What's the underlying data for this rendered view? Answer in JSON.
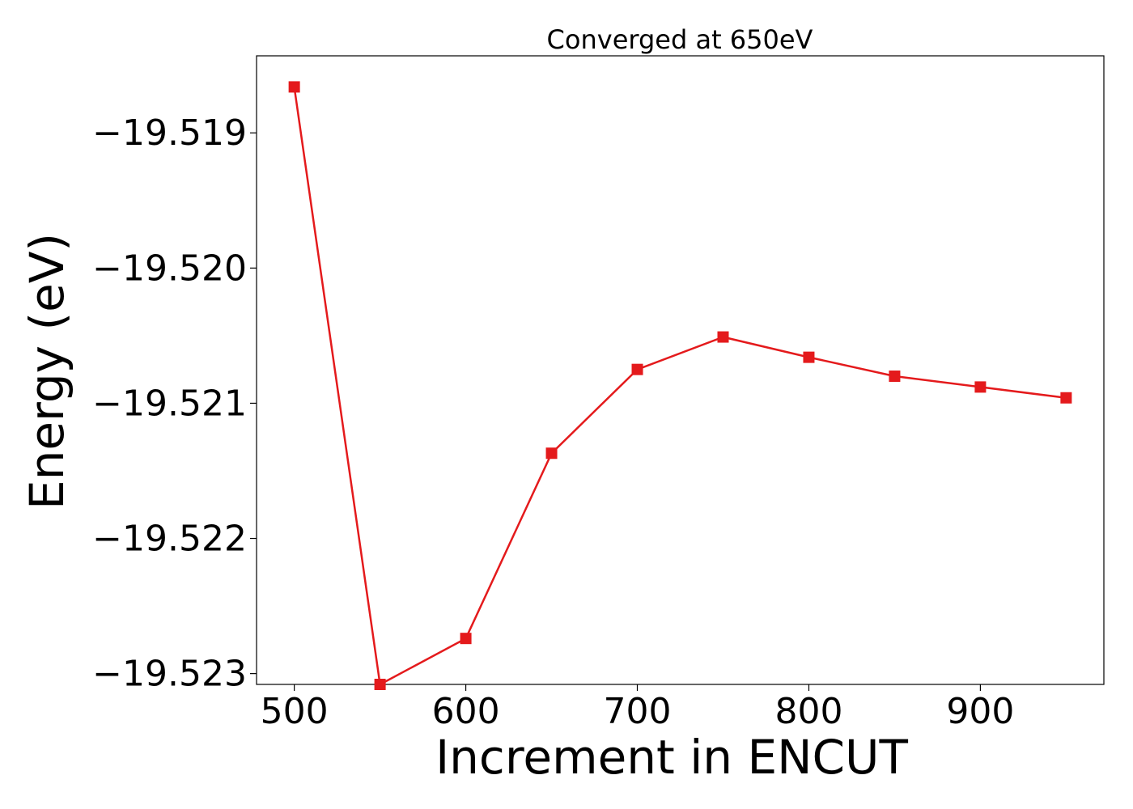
{
  "chart_data": {
    "type": "line",
    "title": "Converged at 650eV",
    "xlabel": "Increment in ENCUT",
    "ylabel": "Energy (eV)",
    "xlim": [
      478,
      972
    ],
    "ylim": [
      -19.52308,
      -19.51843
    ],
    "xticks": [
      500,
      600,
      700,
      800,
      900
    ],
    "xtick_labels": [
      "500",
      "600",
      "700",
      "800",
      "900"
    ],
    "yticks": [
      -19.519,
      -19.52,
      -19.521,
      -19.522,
      -19.523
    ],
    "ytick_labels": [
      "−19.519",
      "−19.520",
      "−19.521",
      "−19.522",
      "−19.523"
    ],
    "grid": false,
    "marker": "square",
    "color": "#e41a1c",
    "series": [
      {
        "x": [
          500,
          550,
          600,
          650,
          700,
          750,
          800,
          850,
          900,
          950
        ],
        "y": [
          -19.51866,
          -19.52308,
          -19.52274,
          -19.52137,
          -19.52075,
          -19.52051,
          -19.52066,
          -19.5208,
          -19.52088,
          -19.52096
        ]
      }
    ]
  }
}
